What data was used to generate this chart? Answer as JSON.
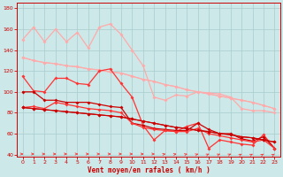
{
  "xlabel": "Vent moyen/en rafales ( km/h )",
  "x": [
    0,
    1,
    2,
    3,
    4,
    5,
    6,
    7,
    8,
    9,
    10,
    11,
    12,
    13,
    14,
    15,
    16,
    17,
    18,
    19,
    20,
    21,
    22,
    23
  ],
  "line1": [
    150,
    162,
    148,
    160,
    148,
    157,
    142,
    162,
    165,
    155,
    140,
    125,
    95,
    92,
    97,
    96,
    100,
    99,
    98,
    95,
    84,
    82,
    82,
    80
  ],
  "line2": [
    133,
    130,
    128,
    127,
    125,
    124,
    122,
    121,
    119,
    118,
    115,
    112,
    110,
    107,
    105,
    102,
    100,
    98,
    96,
    94,
    92,
    90,
    87,
    84
  ],
  "line3_reg1": [
    133,
    130,
    128,
    127,
    125,
    124,
    122,
    121,
    119,
    118,
    115,
    112,
    110,
    107,
    105,
    102,
    100,
    98,
    96,
    94,
    92,
    90,
    87,
    84
  ],
  "line3_reg2": [
    85,
    84,
    83,
    82,
    81,
    80,
    79,
    78,
    77,
    76,
    74,
    72,
    70,
    68,
    66,
    65,
    63,
    62,
    60,
    59,
    57,
    56,
    54,
    52
  ],
  "line4": [
    115,
    101,
    100,
    113,
    113,
    108,
    107,
    120,
    122,
    108,
    95,
    68,
    54,
    63,
    62,
    67,
    70,
    46,
    54,
    52,
    50,
    49,
    59,
    46
  ],
  "line5": [
    100,
    100,
    92,
    92,
    90,
    90,
    90,
    88,
    86,
    85,
    70,
    68,
    65,
    64,
    63,
    63,
    70,
    64,
    60,
    60,
    55,
    53,
    57,
    46
  ],
  "line6": [
    85,
    86,
    84,
    90,
    88,
    86,
    84,
    83,
    82,
    80,
    70,
    66,
    64,
    63,
    62,
    62,
    65,
    60,
    58,
    56,
    54,
    52,
    54,
    46
  ],
  "line7": [
    85,
    84,
    83,
    82,
    81,
    80,
    79,
    78,
    77,
    76,
    74,
    72,
    70,
    68,
    66,
    65,
    63,
    62,
    60,
    59,
    57,
    56,
    54,
    52
  ],
  "background": "#cde8e8",
  "grid_color": "#a8cccc",
  "color_light_pink": "#ffaaaa",
  "color_medium_red": "#ff3333",
  "color_dark_red": "#cc0000",
  "ylim": [
    38,
    185
  ],
  "xlim": [
    -0.5,
    23.5
  ],
  "yticks": [
    40,
    60,
    80,
    100,
    120,
    140,
    160,
    180
  ],
  "xticks": [
    0,
    1,
    2,
    3,
    4,
    5,
    6,
    7,
    8,
    9,
    10,
    11,
    12,
    13,
    14,
    15,
    16,
    17,
    18,
    19,
    20,
    21,
    22,
    23
  ],
  "arrow_angles_deg": [
    0,
    0,
    0,
    0,
    0,
    0,
    0,
    0,
    0,
    0,
    0,
    0,
    0,
    15,
    20,
    25,
    30,
    35,
    35,
    35,
    40,
    40,
    45,
    45
  ]
}
